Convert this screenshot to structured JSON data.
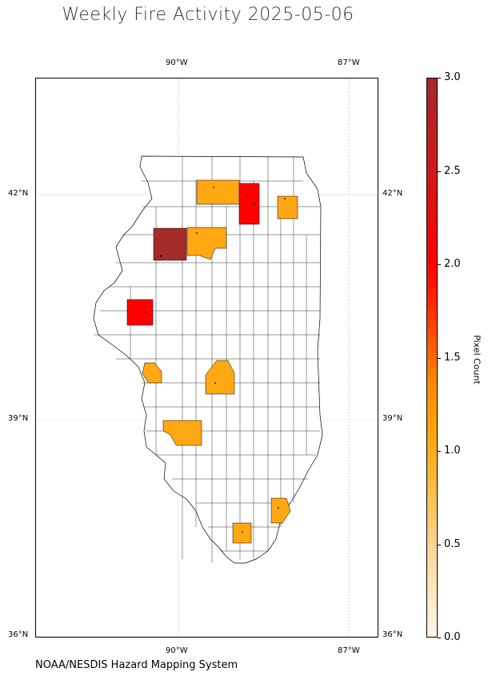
{
  "title": "Weekly Fire Activity 2025-05-06",
  "credit": "NOAA/NESDIS Hazard Mapping System",
  "map": {
    "region": "Illinois counties",
    "lon_ticks_top": [
      "90°W",
      "87°W"
    ],
    "lon_ticks_bottom": [
      "90°W",
      "87°W"
    ],
    "lat_ticks_left": [
      "42°N",
      "39°N",
      "36°N"
    ],
    "lat_ticks_right": [
      "42°N",
      "39°N",
      "36°N"
    ],
    "gridlines": true,
    "highlighted_counties": [
      {
        "pixel_count": 3,
        "color": "#a52a2a"
      },
      {
        "pixel_count": 2,
        "color": "#ff0000"
      },
      {
        "pixel_count": 2,
        "color": "#ff0000"
      },
      {
        "pixel_count": 1,
        "color": "#ffa812"
      },
      {
        "pixel_count": 1,
        "color": "#ffa812"
      },
      {
        "pixel_count": 1,
        "color": "#ffa812"
      },
      {
        "pixel_count": 1,
        "color": "#ffa812"
      },
      {
        "pixel_count": 1,
        "color": "#ffa812"
      },
      {
        "pixel_count": 1,
        "color": "#ffa812"
      },
      {
        "pixel_count": 1,
        "color": "#ffa812"
      },
      {
        "pixel_count": 1,
        "color": "#ffa812"
      }
    ]
  },
  "colorbar": {
    "label": "Pixel Count",
    "ticks": [
      "0.0",
      "0.5",
      "1.0",
      "1.5",
      "2.0",
      "2.5",
      "3.0"
    ],
    "min": 0,
    "max": 3,
    "colors": [
      "#fff8ee",
      "#ffae1a",
      "#ff0000",
      "#a52a2a"
    ]
  }
}
